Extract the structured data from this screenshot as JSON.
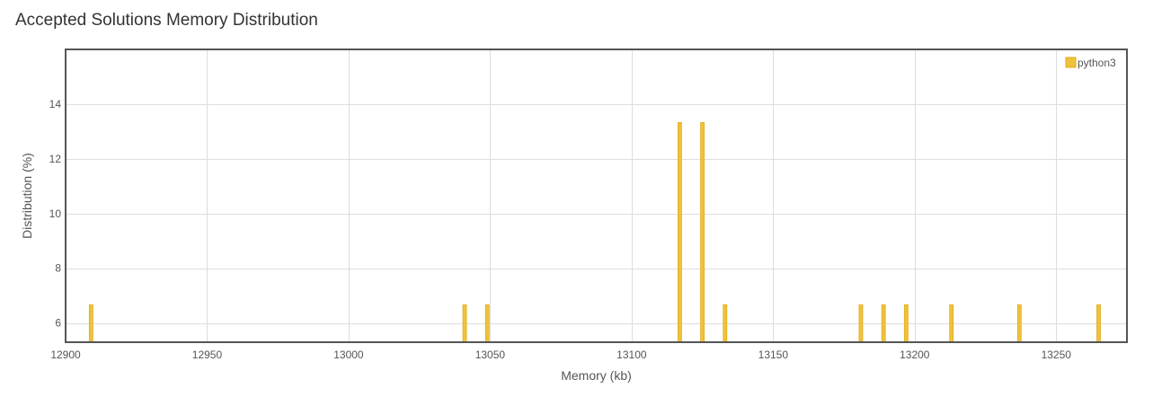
{
  "title": "Accepted Solutions Memory Distribution",
  "chart_data": {
    "type": "bar",
    "xlabel": "Memory (kb)",
    "ylabel": "Distribution (%)",
    "xlim": [
      12900,
      13275
    ],
    "ylim": [
      5.3,
      16
    ],
    "xticks": [
      12900,
      12950,
      13000,
      13050,
      13100,
      13150,
      13200,
      13250
    ],
    "yticks": [
      6,
      8,
      10,
      12,
      14
    ],
    "grid": true,
    "legend_position": "top-right",
    "series": [
      {
        "name": "python3",
        "color": "#f0c23b",
        "x": [
          12909,
          13041,
          13049,
          13117,
          13125,
          13133,
          13181,
          13189,
          13197,
          13213,
          13237,
          13265
        ],
        "values": [
          6.67,
          6.67,
          6.67,
          13.33,
          13.33,
          6.67,
          6.67,
          6.67,
          6.67,
          6.67,
          6.67,
          6.67
        ]
      }
    ]
  }
}
